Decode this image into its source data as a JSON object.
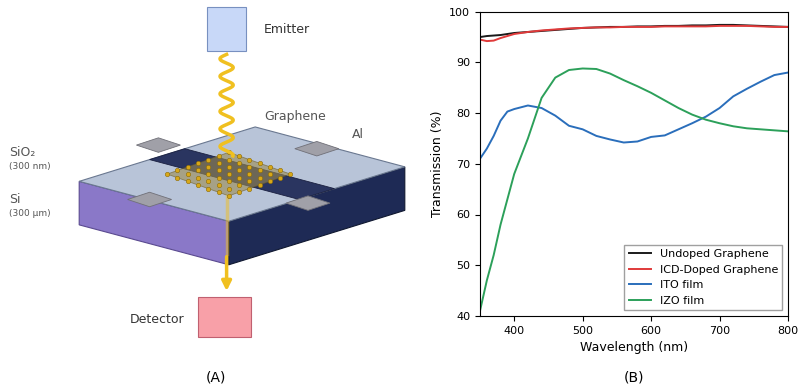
{
  "diagram": {
    "panel_label": "(A)",
    "emitter": "Emitter",
    "detector": "Detector",
    "graphene": "Graphene",
    "electrode": "Al",
    "oxide": {
      "name": "SiO₂",
      "thickness": "(300 nm)"
    },
    "substrate": {
      "name": "Si",
      "thickness": "(300 µm)"
    }
  },
  "chart_data": {
    "type": "line",
    "annotations": [
      "(B)"
    ],
    "x_label": "Wavelength (nm)",
    "y_label": "Transmission (%)",
    "x": [
      350,
      360,
      370,
      380,
      390,
      400,
      420,
      440,
      460,
      480,
      500,
      520,
      540,
      560,
      580,
      600,
      620,
      640,
      660,
      680,
      700,
      720,
      740,
      760,
      780,
      800
    ],
    "series": [
      {
        "name": "Undoped Graphene",
        "color": "#1a1a1a",
        "values": [
          95.0,
          95.2,
          95.3,
          95.4,
          95.6,
          95.8,
          96.0,
          96.2,
          96.4,
          96.6,
          96.8,
          96.9,
          97.0,
          97.0,
          97.1,
          97.1,
          97.2,
          97.2,
          97.3,
          97.3,
          97.4,
          97.4,
          97.3,
          97.2,
          97.1,
          97.0
        ]
      },
      {
        "name": "ICD-Doped Graphene",
        "color": "#e03a3a",
        "values": [
          94.5,
          94.2,
          94.3,
          94.8,
          95.2,
          95.6,
          96.0,
          96.3,
          96.5,
          96.7,
          96.8,
          96.9,
          96.9,
          97.0,
          97.0,
          97.0,
          97.1,
          97.1,
          97.1,
          97.1,
          97.2,
          97.2,
          97.2,
          97.1,
          97.0,
          97.0
        ]
      },
      {
        "name": "ITO film",
        "color": "#2a6ebb",
        "values": [
          71.0,
          73.0,
          75.5,
          78.5,
          80.3,
          80.8,
          81.5,
          81.0,
          79.5,
          77.5,
          76.8,
          75.5,
          74.8,
          74.2,
          74.4,
          75.3,
          75.6,
          76.8,
          78.0,
          79.3,
          81.0,
          83.3,
          84.8,
          86.2,
          87.5,
          88.0
        ]
      },
      {
        "name": "IZO film",
        "color": "#2ca05a",
        "values": [
          41.0,
          47.0,
          52.0,
          58.0,
          63.0,
          68.0,
          75.0,
          83.0,
          87.0,
          88.5,
          88.8,
          88.7,
          87.8,
          86.5,
          85.3,
          84.0,
          82.5,
          81.0,
          79.7,
          78.7,
          78.0,
          77.4,
          77.0,
          76.8,
          76.6,
          76.4
        ]
      }
    ],
    "xlim": [
      350,
      800
    ],
    "ylim": [
      40,
      100
    ],
    "xticks": [
      400,
      500,
      600,
      700,
      800
    ],
    "yticks": [
      40,
      50,
      60,
      70,
      80,
      90,
      100
    ],
    "legend": "lower right",
    "grid": false
  }
}
